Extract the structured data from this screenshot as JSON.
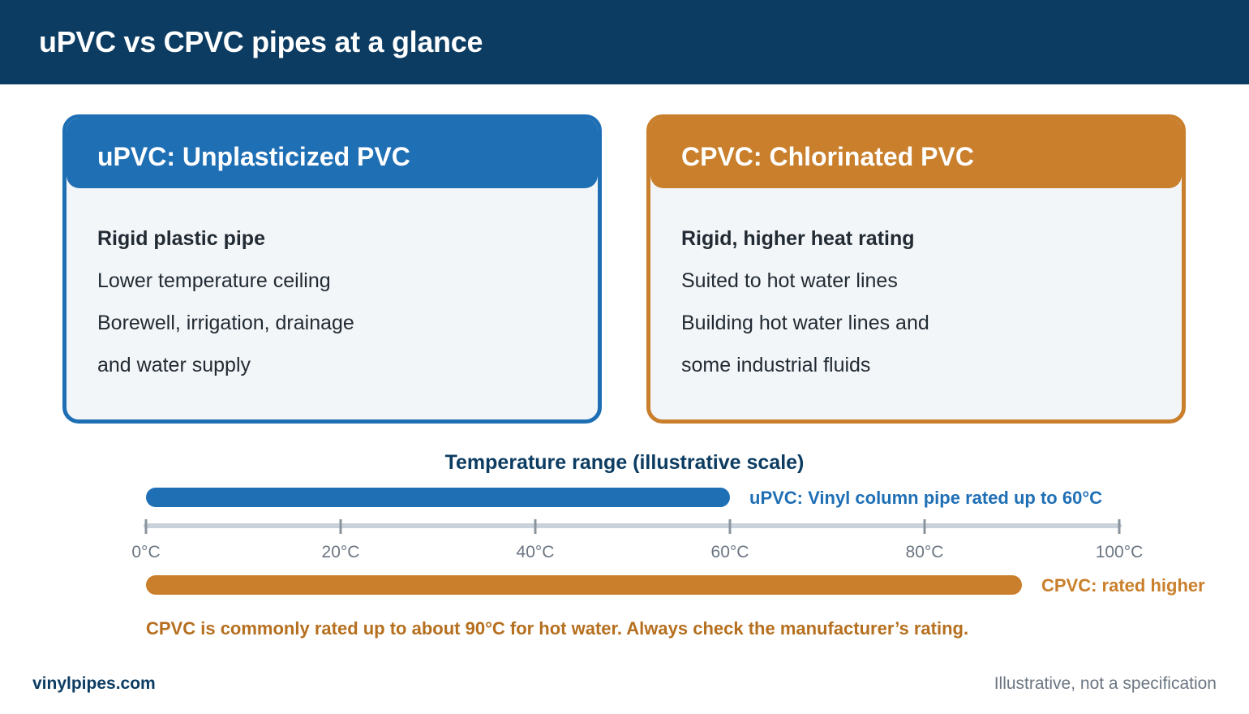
{
  "header": {
    "title": "uPVC vs CPVC pipes at a glance"
  },
  "cards": [
    {
      "title": "uPVC: Unplasticized PVC",
      "color": "#1f6fb5",
      "lines": [
        "Rigid plastic pipe",
        "Lower temperature ceiling",
        "Borewell, irrigation, drainage",
        "and water supply"
      ]
    },
    {
      "title": "CPVC: Chlorinated PVC",
      "color": "#c97f2b",
      "lines": [
        "Rigid, higher heat rating",
        "Suited to hot water lines",
        "Building hot water lines and",
        "some industrial fluids"
      ]
    }
  ],
  "scale": {
    "title": "Temperature range (illustrative scale)",
    "min": 0,
    "max": 100,
    "ticks": [
      {
        "value": 0,
        "label": "0°C"
      },
      {
        "value": 20,
        "label": "20°C"
      },
      {
        "value": 40,
        "label": "40°C"
      },
      {
        "value": 60,
        "label": "60°C"
      },
      {
        "value": 80,
        "label": "80°C"
      },
      {
        "value": 100,
        "label": "100°C"
      }
    ],
    "bars": [
      {
        "name": "upvc",
        "from": 0,
        "to": 60,
        "label": "uPVC: Vinyl column pipe rated up to 60°C",
        "color": "#1f6fb5"
      },
      {
        "name": "cpvc",
        "from": 0,
        "to": 90,
        "label": "CPVC: rated higher",
        "color": "#c97f2b"
      }
    ]
  },
  "footnote": "CPVC is commonly rated up to about 90°C for hot water. Always check the manufacturer’s rating.",
  "footer": {
    "brand": "vinylpipes.com",
    "disclaimer": "Illustrative, not a specification"
  }
}
